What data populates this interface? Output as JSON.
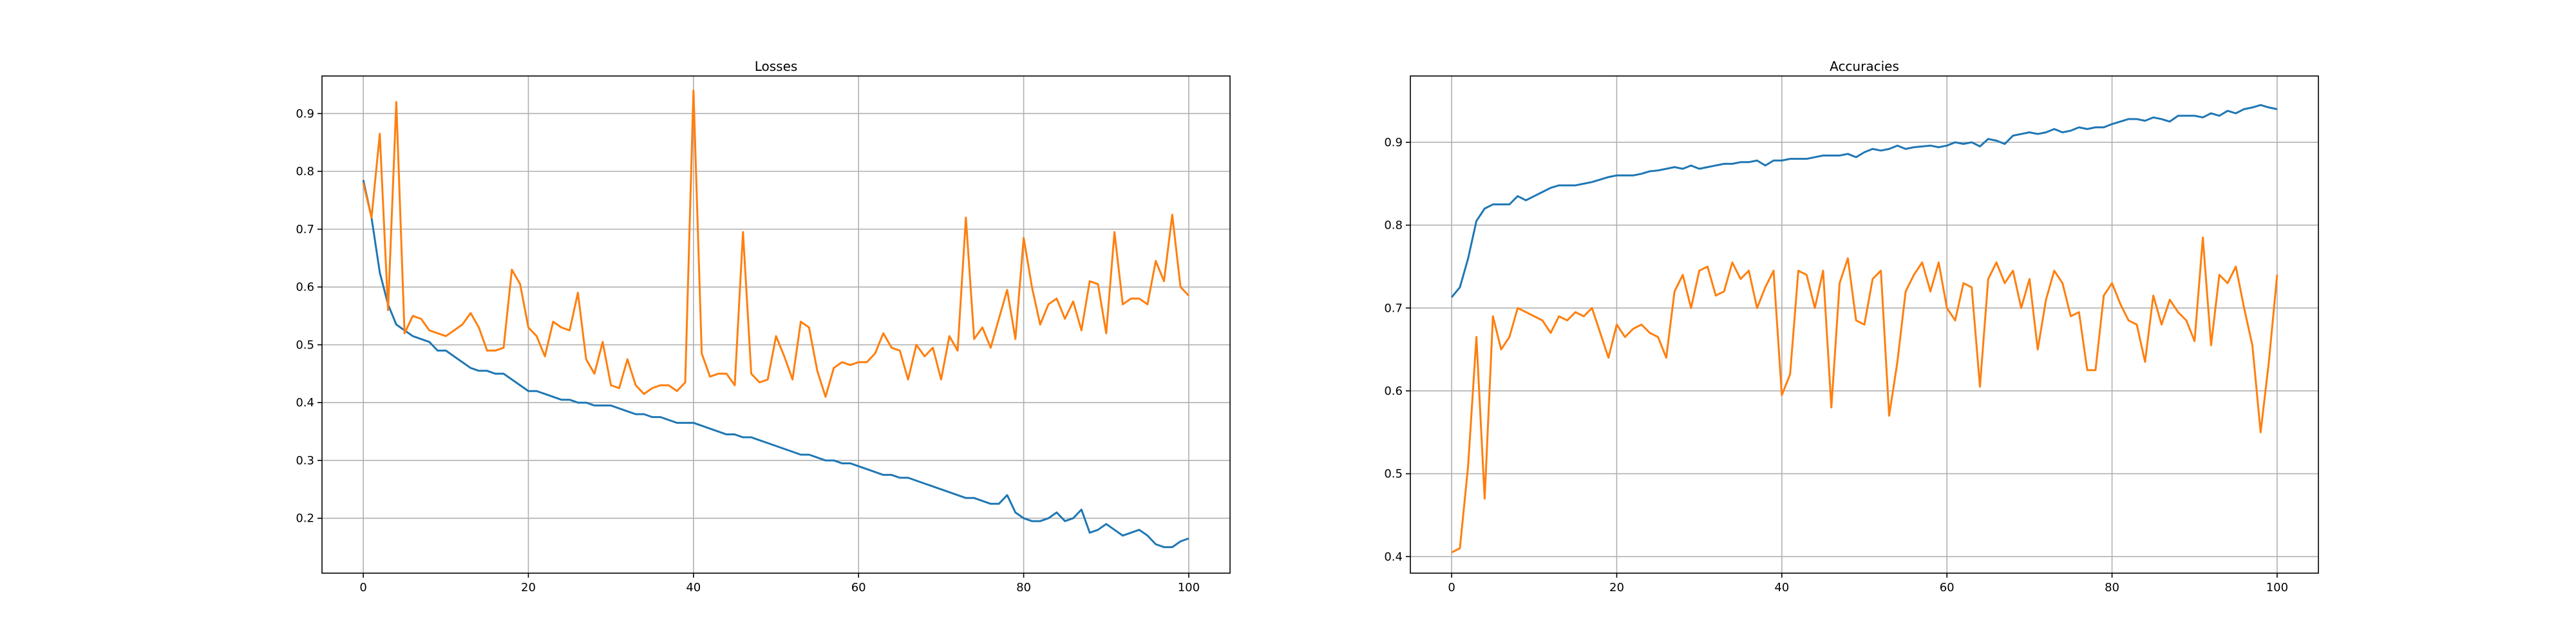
{
  "chart_data": [
    {
      "type": "line",
      "title": "Losses",
      "xlabel": "",
      "ylabel": "",
      "xlim": [
        -5,
        105
      ],
      "ylim": [
        0.105,
        0.965
      ],
      "xticks": [
        0,
        20,
        40,
        60,
        80,
        100
      ],
      "yticks": [
        0.2,
        0.3,
        0.4,
        0.5,
        0.6,
        0.7,
        0.8,
        0.9
      ],
      "grid": true,
      "legend": "none",
      "series": [
        {
          "color": "#1f77b4",
          "values": [
            0.785,
            0.72,
            0.625,
            0.57,
            0.535,
            0.525,
            0.515,
            0.51,
            0.505,
            0.49,
            0.49,
            0.48,
            0.47,
            0.46,
            0.455,
            0.455,
            0.45,
            0.45,
            0.44,
            0.43,
            0.42,
            0.42,
            0.415,
            0.41,
            0.405,
            0.405,
            0.4,
            0.4,
            0.395,
            0.395,
            0.395,
            0.39,
            0.385,
            0.38,
            0.38,
            0.375,
            0.375,
            0.37,
            0.365,
            0.365,
            0.365,
            0.36,
            0.355,
            0.35,
            0.345,
            0.345,
            0.34,
            0.34,
            0.335,
            0.33,
            0.325,
            0.32,
            0.315,
            0.31,
            0.31,
            0.305,
            0.3,
            0.3,
            0.295,
            0.295,
            0.29,
            0.285,
            0.28,
            0.275,
            0.275,
            0.27,
            0.27,
            0.265,
            0.26,
            0.255,
            0.25,
            0.245,
            0.24,
            0.235,
            0.235,
            0.23,
            0.225,
            0.225,
            0.24,
            0.21,
            0.2,
            0.195,
            0.195,
            0.2,
            0.21,
            0.195,
            0.2,
            0.215,
            0.175,
            0.18,
            0.19,
            0.18,
            0.17,
            0.175,
            0.18,
            0.17,
            0.155,
            0.15,
            0.15,
            0.16,
            0.165
          ]
        },
        {
          "color": "#ff7f0e",
          "values": [
            0.78,
            0.72,
            0.865,
            0.56,
            0.92,
            0.52,
            0.55,
            0.545,
            0.525,
            0.52,
            0.515,
            0.525,
            0.535,
            0.555,
            0.53,
            0.49,
            0.49,
            0.495,
            0.63,
            0.605,
            0.53,
            0.515,
            0.48,
            0.54,
            0.53,
            0.525,
            0.59,
            0.475,
            0.45,
            0.505,
            0.43,
            0.425,
            0.475,
            0.43,
            0.415,
            0.425,
            0.43,
            0.43,
            0.42,
            0.435,
            0.94,
            0.485,
            0.445,
            0.45,
            0.45,
            0.43,
            0.695,
            0.45,
            0.435,
            0.44,
            0.515,
            0.48,
            0.44,
            0.54,
            0.53,
            0.455,
            0.41,
            0.46,
            0.47,
            0.465,
            0.47,
            0.47,
            0.485,
            0.52,
            0.495,
            0.49,
            0.44,
            0.5,
            0.48,
            0.495,
            0.44,
            0.515,
            0.49,
            0.72,
            0.51,
            0.53,
            0.495,
            0.545,
            0.595,
            0.51,
            0.685,
            0.6,
            0.535,
            0.57,
            0.58,
            0.545,
            0.575,
            0.525,
            0.61,
            0.605,
            0.52,
            0.695,
            0.57,
            0.58,
            0.58,
            0.57,
            0.645,
            0.61,
            0.725,
            0.6,
            0.585
          ]
        }
      ]
    },
    {
      "type": "line",
      "title": "Accuracies",
      "xlabel": "",
      "ylabel": "",
      "xlim": [
        -5,
        105
      ],
      "ylim": [
        0.38,
        0.98
      ],
      "xticks": [
        0,
        20,
        40,
        60,
        80,
        100
      ],
      "yticks": [
        0.4,
        0.5,
        0.6,
        0.7,
        0.8,
        0.9
      ],
      "grid": true,
      "legend": "none",
      "series": [
        {
          "color": "#1f77b4",
          "values": [
            0.713,
            0.725,
            0.76,
            0.805,
            0.82,
            0.825,
            0.825,
            0.825,
            0.835,
            0.83,
            0.835,
            0.84,
            0.845,
            0.848,
            0.848,
            0.848,
            0.85,
            0.852,
            0.855,
            0.858,
            0.86,
            0.86,
            0.86,
            0.862,
            0.865,
            0.866,
            0.868,
            0.87,
            0.868,
            0.872,
            0.868,
            0.87,
            0.872,
            0.874,
            0.874,
            0.876,
            0.876,
            0.878,
            0.872,
            0.878,
            0.878,
            0.88,
            0.88,
            0.88,
            0.882,
            0.884,
            0.884,
            0.884,
            0.886,
            0.882,
            0.888,
            0.892,
            0.89,
            0.892,
            0.896,
            0.892,
            0.894,
            0.895,
            0.896,
            0.894,
            0.896,
            0.9,
            0.898,
            0.9,
            0.895,
            0.904,
            0.902,
            0.898,
            0.908,
            0.91,
            0.912,
            0.91,
            0.912,
            0.916,
            0.912,
            0.914,
            0.918,
            0.916,
            0.918,
            0.918,
            0.922,
            0.925,
            0.928,
            0.928,
            0.926,
            0.93,
            0.928,
            0.925,
            0.932,
            0.932,
            0.932,
            0.93,
            0.935,
            0.932,
            0.938,
            0.935,
            0.94,
            0.942,
            0.945,
            0.942,
            0.94
          ]
        },
        {
          "color": "#ff7f0e",
          "values": [
            0.405,
            0.41,
            0.51,
            0.665,
            0.47,
            0.69,
            0.65,
            0.665,
            0.7,
            0.695,
            0.69,
            0.685,
            0.67,
            0.69,
            0.685,
            0.695,
            0.69,
            0.7,
            0.67,
            0.64,
            0.68,
            0.665,
            0.675,
            0.68,
            0.67,
            0.665,
            0.64,
            0.72,
            0.74,
            0.7,
            0.745,
            0.75,
            0.715,
            0.72,
            0.755,
            0.735,
            0.745,
            0.7,
            0.725,
            0.745,
            0.595,
            0.62,
            0.745,
            0.74,
            0.7,
            0.745,
            0.58,
            0.73,
            0.76,
            0.685,
            0.68,
            0.735,
            0.745,
            0.57,
            0.635,
            0.72,
            0.74,
            0.755,
            0.72,
            0.755,
            0.7,
            0.685,
            0.73,
            0.725,
            0.605,
            0.735,
            0.755,
            0.73,
            0.745,
            0.7,
            0.735,
            0.65,
            0.71,
            0.745,
            0.73,
            0.69,
            0.695,
            0.625,
            0.625,
            0.715,
            0.73,
            0.705,
            0.685,
            0.68,
            0.635,
            0.715,
            0.68,
            0.71,
            0.695,
            0.685,
            0.66,
            0.785,
            0.655,
            0.74,
            0.73,
            0.75,
            0.7,
            0.655,
            0.55,
            0.635,
            0.74
          ]
        }
      ]
    }
  ]
}
